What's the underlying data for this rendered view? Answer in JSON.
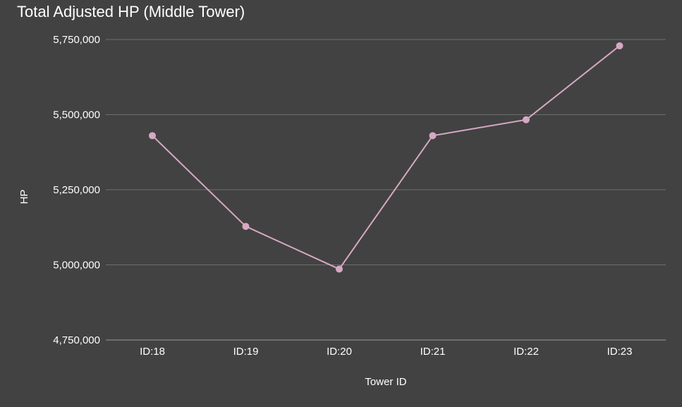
{
  "chart_data": {
    "type": "line",
    "title": "Total Adjusted HP (Middle Tower)",
    "xlabel": "Tower ID",
    "ylabel": "HP",
    "categories": [
      "ID:18",
      "ID:19",
      "ID:20",
      "ID:21",
      "ID:22",
      "ID:23"
    ],
    "series": [
      {
        "values": [
          5430000,
          5128000,
          4986000,
          5430000,
          5483000,
          5729000
        ]
      }
    ],
    "ylim": [
      4750000,
      5750000
    ],
    "yticks": [
      4750000,
      5000000,
      5250000,
      5500000,
      5750000
    ],
    "ytick_labels": [
      "4,750,000",
      "5,000,000",
      "5,250,000",
      "5,500,000",
      "5,750,000"
    ],
    "grid": true,
    "legend": "none",
    "colors": {
      "background": "#424242",
      "line": "#d6a8c3",
      "grid": "#6e6e6e",
      "text": "#ffffff"
    }
  }
}
